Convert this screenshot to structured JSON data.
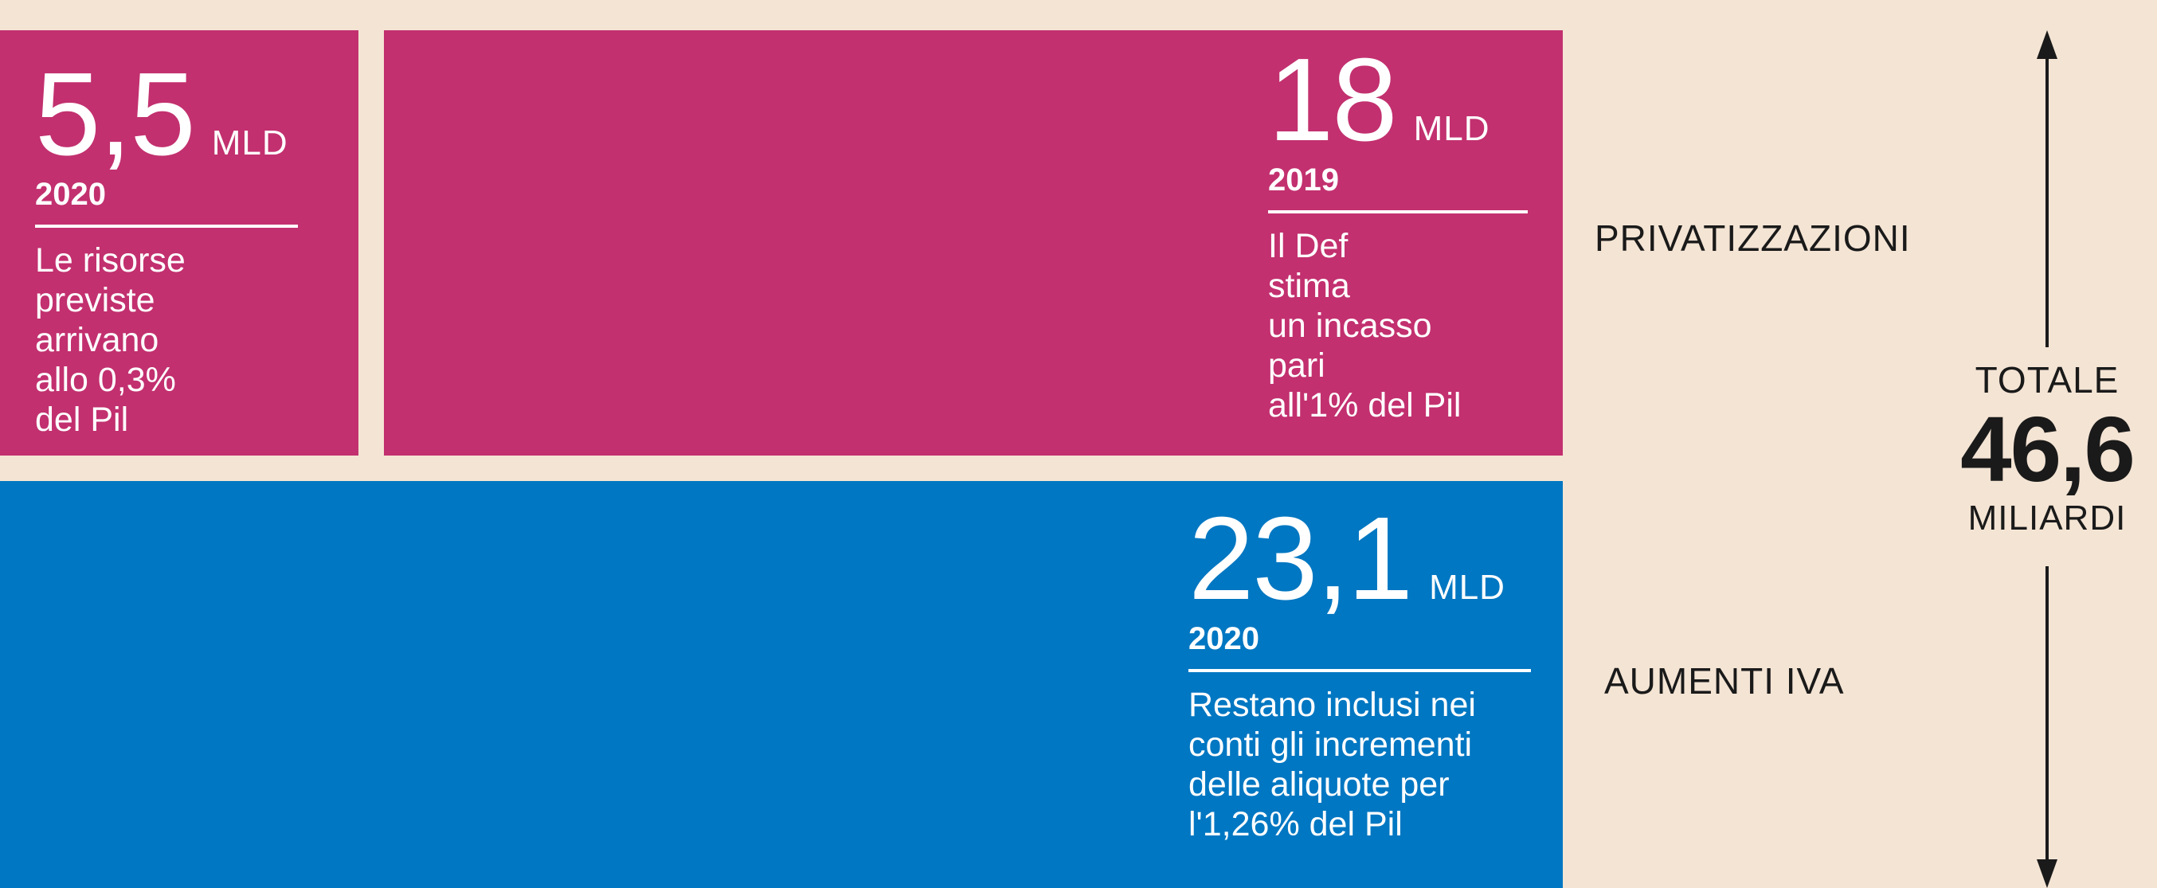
{
  "chart_data": {
    "type": "bar",
    "title": "",
    "stacks": [
      {
        "category": "PRIVATIZZAZIONI",
        "segments": [
          {
            "value": 5.5,
            "value_label": "5,5",
            "unit": "MLD",
            "year": "2020",
            "note": "Le risorse\npreviste\narrivano\nallo 0,3%\ndel Pil"
          },
          {
            "value": 18,
            "value_label": "18",
            "unit": "MLD",
            "year": "2019",
            "note": "Il Def\nstima\nun incasso\npari\nall'1% del Pil"
          }
        ]
      },
      {
        "category": "AUMENTI IVA",
        "segments": [
          {
            "value": 23.1,
            "value_label": "23,1",
            "unit": "MLD",
            "year": "2020",
            "note": "Restano inclusi nei\nconti gli incrementi\ndelle aliquote per\nl'1,26% del Pil"
          }
        ]
      }
    ],
    "total": {
      "label": "TOTALE",
      "value": 46.6,
      "value_label": "46,6",
      "unit": "MILIARDI"
    }
  },
  "colors": {
    "background": "#f4e4d4",
    "privatizzazioni": "#c2306f",
    "aumenti_iva": "#0077c2",
    "text_dark": "#1a1a1a",
    "text_light": "#ffffff"
  },
  "icons": {
    "total_axis": "double-headed-vertical-arrow"
  }
}
